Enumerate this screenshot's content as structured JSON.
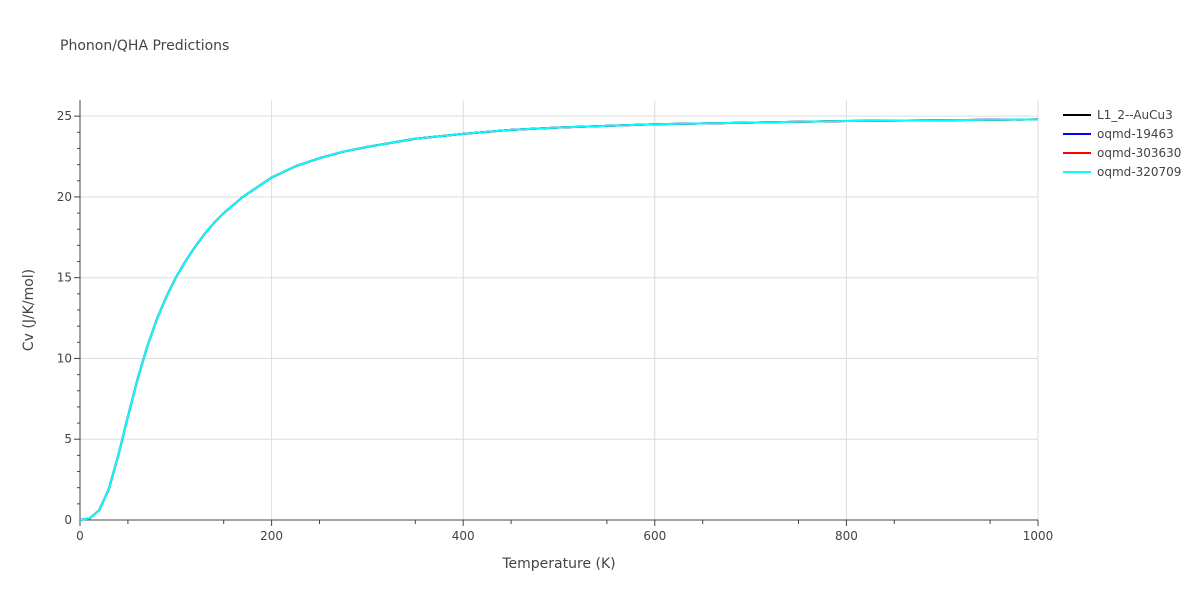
{
  "chart_data": {
    "type": "line",
    "title": "Phonon/QHA Predictions",
    "xlabel": "Temperature (K)",
    "ylabel": "Cv (J/K/mol)",
    "xlim": [
      0,
      1000
    ],
    "ylim": [
      0,
      26
    ],
    "x_ticks": [
      0,
      200,
      400,
      600,
      800,
      1000
    ],
    "y_ticks": [
      0,
      5,
      10,
      15,
      20,
      25
    ],
    "grid": true,
    "legend_position": "top-right",
    "x": [
      0,
      10,
      20,
      30,
      40,
      50,
      60,
      70,
      80,
      90,
      100,
      110,
      120,
      130,
      140,
      150,
      160,
      170,
      180,
      190,
      200,
      225,
      250,
      275,
      300,
      350,
      400,
      450,
      500,
      600,
      700,
      800,
      900,
      1000
    ],
    "series": [
      {
        "name": "L1_2--AuCu3",
        "color": "#000000",
        "values": [
          0,
          0.1,
          0.6,
          1.9,
          4.0,
          6.4,
          8.7,
          10.7,
          12.4,
          13.8,
          15.0,
          16.0,
          16.9,
          17.7,
          18.4,
          19.0,
          19.5,
          20.0,
          20.4,
          20.8,
          21.2,
          21.9,
          22.4,
          22.8,
          23.1,
          23.6,
          23.9,
          24.15,
          24.3,
          24.5,
          24.6,
          24.7,
          24.75,
          24.8
        ]
      },
      {
        "name": "oqmd-19463",
        "color": "#0000ff",
        "values": [
          0,
          0.1,
          0.6,
          1.9,
          4.0,
          6.4,
          8.7,
          10.7,
          12.4,
          13.8,
          15.0,
          16.0,
          16.9,
          17.7,
          18.4,
          19.0,
          19.5,
          20.0,
          20.4,
          20.8,
          21.2,
          21.9,
          22.4,
          22.8,
          23.1,
          23.6,
          23.9,
          24.15,
          24.3,
          24.5,
          24.6,
          24.7,
          24.75,
          24.8
        ]
      },
      {
        "name": "oqmd-303630",
        "color": "#ff0000",
        "values": [
          0,
          0.1,
          0.6,
          1.9,
          4.0,
          6.4,
          8.7,
          10.7,
          12.4,
          13.8,
          15.0,
          16.0,
          16.9,
          17.7,
          18.4,
          19.0,
          19.5,
          20.0,
          20.4,
          20.8,
          21.2,
          21.9,
          22.4,
          22.8,
          23.1,
          23.6,
          23.9,
          24.15,
          24.3,
          24.5,
          24.6,
          24.7,
          24.75,
          24.8
        ]
      },
      {
        "name": "oqmd-320709",
        "color": "#00ffff",
        "values": [
          0,
          0.1,
          0.6,
          1.9,
          4.0,
          6.4,
          8.7,
          10.7,
          12.4,
          13.8,
          15.0,
          16.0,
          16.9,
          17.7,
          18.4,
          19.0,
          19.5,
          20.0,
          20.4,
          20.8,
          21.2,
          21.9,
          22.4,
          22.8,
          23.1,
          23.6,
          23.9,
          24.15,
          24.3,
          24.5,
          24.6,
          24.7,
          24.75,
          24.8
        ]
      }
    ]
  }
}
